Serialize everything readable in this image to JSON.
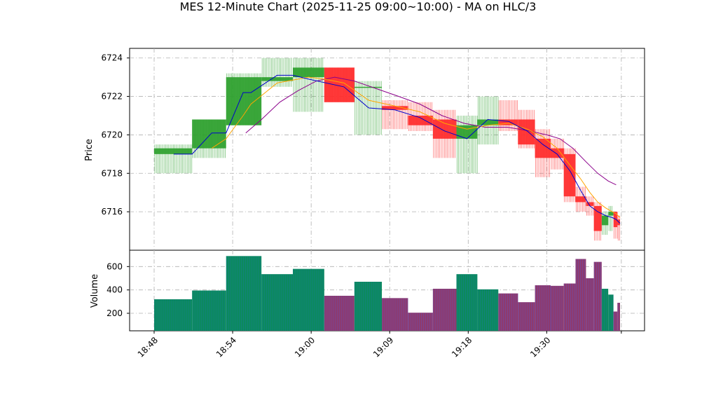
{
  "chart_data": {
    "type": "candlestick",
    "title": "MES 12-Minute Chart (2025-11-25 09:00~10:00) - MA on HLC/3",
    "xlabel": "",
    "ylabel": "Price",
    "volume_label": "Volume",
    "ylim": [
      6714.0,
      6724.5
    ],
    "volume_ylim": [
      50,
      740
    ],
    "y_ticks": [
      "6716",
      "6718",
      "6720",
      "6722",
      "6724"
    ],
    "volume_ticks": [
      "200",
      "400",
      "600"
    ],
    "x_ticks": [
      "18:48",
      "18:54",
      "19:00",
      "19:09",
      "19:18",
      "19:30"
    ],
    "grid": true,
    "colors": {
      "up": "#2ca02c",
      "down": "#ff2a2a",
      "ma_fast": "#0000cc",
      "ma_mid": "#ffa500",
      "ma_slow": "#8b008b",
      "vol_up": "#0b8a5c",
      "vol_down": "#8e3a6e"
    },
    "candles": [
      {
        "t": 0.0,
        "w": 2.9,
        "o": 6719.0,
        "h": 6719.5,
        "l": 6718.0,
        "c": 6719.3,
        "v": 320
      },
      {
        "t": 2.9,
        "w": 2.6,
        "o": 6719.3,
        "h": 6720.8,
        "l": 6718.8,
        "c": 6720.8,
        "v": 395
      },
      {
        "t": 5.5,
        "w": 2.7,
        "o": 6720.5,
        "h": 6723.2,
        "l": 6720.5,
        "c": 6723.0,
        "v": 690
      },
      {
        "t": 8.2,
        "w": 2.4,
        "o": 6722.8,
        "h": 6724.0,
        "l": 6722.5,
        "c": 6723.0,
        "v": 535
      },
      {
        "t": 10.6,
        "w": 2.4,
        "o": 6723.0,
        "h": 6724.0,
        "l": 6721.2,
        "c": 6723.5,
        "v": 580
      },
      {
        "t": 13.0,
        "w": 2.3,
        "o": 6723.5,
        "h": 6723.5,
        "l": 6721.7,
        "c": 6721.7,
        "v": 350
      },
      {
        "t": 15.3,
        "w": 2.1,
        "o": 6722.5,
        "h": 6722.8,
        "l": 6720.0,
        "c": 6722.5,
        "v": 470
      },
      {
        "t": 17.4,
        "w": 2.0,
        "o": 6721.5,
        "h": 6721.8,
        "l": 6720.3,
        "c": 6721.3,
        "v": 330
      },
      {
        "t": 19.4,
        "w": 1.9,
        "o": 6721.0,
        "h": 6721.7,
        "l": 6720.2,
        "c": 6720.5,
        "v": 205
      },
      {
        "t": 21.3,
        "w": 1.8,
        "o": 6720.8,
        "h": 6721.3,
        "l": 6718.8,
        "c": 6719.8,
        "v": 410
      },
      {
        "t": 23.1,
        "w": 1.6,
        "o": 6719.8,
        "h": 6721.0,
        "l": 6718.0,
        "c": 6720.5,
        "v": 535
      },
      {
        "t": 24.7,
        "w": 1.6,
        "o": 6720.5,
        "h": 6722.0,
        "l": 6719.5,
        "c": 6720.8,
        "v": 405
      },
      {
        "t": 26.3,
        "w": 1.5,
        "o": 6720.8,
        "h": 6721.8,
        "l": 6720.2,
        "c": 6720.5,
        "v": 370
      },
      {
        "t": 27.8,
        "w": 1.3,
        "o": 6720.8,
        "h": 6721.3,
        "l": 6719.3,
        "c": 6719.5,
        "v": 295
      },
      {
        "t": 29.1,
        "w": 1.2,
        "o": 6719.8,
        "h": 6720.3,
        "l": 6717.8,
        "c": 6718.8,
        "v": 440
      },
      {
        "t": 30.3,
        "w": 1.0,
        "o": 6719.3,
        "h": 6719.8,
        "l": 6718.2,
        "c": 6718.8,
        "v": 435
      },
      {
        "t": 31.3,
        "w": 0.9,
        "o": 6719.0,
        "h": 6719.3,
        "l": 6716.5,
        "c": 6716.8,
        "v": 455
      },
      {
        "t": 32.2,
        "w": 0.8,
        "o": 6716.8,
        "h": 6717.3,
        "l": 6716.0,
        "c": 6716.5,
        "v": 665
      },
      {
        "t": 33.0,
        "w": 0.6,
        "o": 6716.5,
        "h": 6716.8,
        "l": 6715.8,
        "c": 6716.3,
        "v": 500
      },
      {
        "t": 33.6,
        "w": 0.6,
        "o": 6716.3,
        "h": 6716.5,
        "l": 6714.5,
        "c": 6715.0,
        "v": 640
      },
      {
        "t": 34.2,
        "w": 0.5,
        "o": 6715.3,
        "h": 6716.0,
        "l": 6714.8,
        "c": 6715.8,
        "v": 410
      },
      {
        "t": 34.7,
        "w": 0.4,
        "o": 6715.8,
        "h": 6716.3,
        "l": 6715.0,
        "c": 6716.0,
        "v": 360
      },
      {
        "t": 35.1,
        "w": 0.3,
        "o": 6716.0,
        "h": 6716.0,
        "l": 6714.6,
        "c": 6715.2,
        "v": 215
      },
      {
        "t": 35.4,
        "w": 0.2,
        "o": 6715.6,
        "h": 6715.8,
        "l": 6714.5,
        "c": 6715.3,
        "v": 290
      }
    ],
    "ma_fast": [
      [
        1.5,
        6719.0
      ],
      [
        2.9,
        6719.0
      ],
      [
        4.4,
        6720.1
      ],
      [
        5.5,
        6720.1
      ],
      [
        6.8,
        6722.2
      ],
      [
        7.4,
        6722.2
      ],
      [
        9.4,
        6723.1
      ],
      [
        10.6,
        6723.1
      ],
      [
        11.8,
        6722.9
      ],
      [
        14.5,
        6722.5
      ],
      [
        16.4,
        6721.4
      ],
      [
        18.4,
        6721.3
      ],
      [
        20.3,
        6720.9
      ],
      [
        22.2,
        6720.2
      ],
      [
        23.9,
        6719.8
      ],
      [
        25.5,
        6720.8
      ],
      [
        27.1,
        6720.7
      ],
      [
        28.5,
        6720.2
      ],
      [
        29.7,
        6719.5
      ],
      [
        30.8,
        6719.0
      ],
      [
        31.8,
        6718.1
      ],
      [
        32.6,
        6717.1
      ],
      [
        33.3,
        6716.3
      ],
      [
        33.9,
        6716.0
      ],
      [
        34.5,
        6715.8
      ],
      [
        35.0,
        6715.7
      ],
      [
        35.3,
        6715.6
      ],
      [
        35.6,
        6715.4
      ]
    ],
    "ma_mid": [
      [
        4.4,
        6719.3
      ],
      [
        5.5,
        6719.8
      ],
      [
        6.8,
        6721.0
      ],
      [
        7.4,
        6721.6
      ],
      [
        9.4,
        6722.7
      ],
      [
        11.8,
        6723.0
      ],
      [
        13.0,
        6722.9
      ],
      [
        14.5,
        6722.7
      ],
      [
        16.4,
        6721.8
      ],
      [
        18.4,
        6721.5
      ],
      [
        20.3,
        6721.2
      ],
      [
        22.2,
        6720.6
      ],
      [
        23.9,
        6720.3
      ],
      [
        25.5,
        6720.5
      ],
      [
        27.1,
        6720.6
      ],
      [
        28.5,
        6720.3
      ],
      [
        29.7,
        6719.9
      ],
      [
        30.8,
        6719.3
      ],
      [
        31.8,
        6718.4
      ],
      [
        32.6,
        6717.7
      ],
      [
        33.3,
        6717.0
      ],
      [
        33.9,
        6716.5
      ],
      [
        34.5,
        6716.2
      ],
      [
        35.0,
        6716.0
      ],
      [
        35.3,
        6715.9
      ],
      [
        35.6,
        6715.7
      ]
    ],
    "ma_slow": [
      [
        7.0,
        6720.1
      ],
      [
        8.2,
        6720.8
      ],
      [
        9.6,
        6721.7
      ],
      [
        11.0,
        6722.3
      ],
      [
        12.4,
        6722.8
      ],
      [
        13.8,
        6723.0
      ],
      [
        15.3,
        6722.8
      ],
      [
        17.0,
        6722.4
      ],
      [
        18.7,
        6722.0
      ],
      [
        20.3,
        6721.6
      ],
      [
        22.0,
        6721.0
      ],
      [
        23.7,
        6720.6
      ],
      [
        25.3,
        6720.4
      ],
      [
        27.0,
        6720.4
      ],
      [
        28.7,
        6720.2
      ],
      [
        30.0,
        6720.0
      ],
      [
        31.0,
        6719.8
      ],
      [
        32.0,
        6719.3
      ],
      [
        33.0,
        6718.6
      ],
      [
        33.9,
        6718.0
      ],
      [
        34.7,
        6717.6
      ],
      [
        35.3,
        6717.4
      ]
    ]
  }
}
